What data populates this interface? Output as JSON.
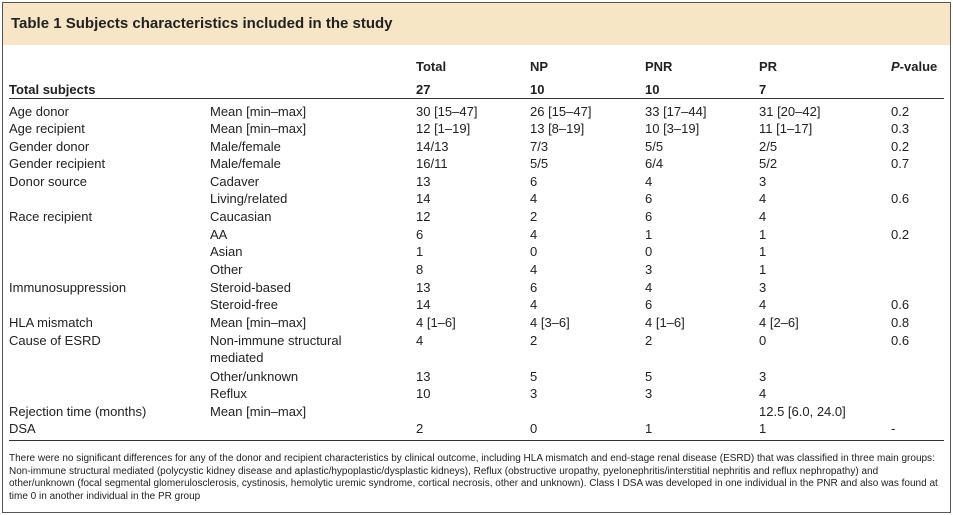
{
  "title": "Table 1 Subjects characteristics included in the study",
  "table": {
    "header": [
      "Total",
      "NP",
      "PNR",
      "PR",
      "P-value"
    ],
    "total_row": [
      "Total subjects",
      "27",
      "10",
      "10",
      "7"
    ],
    "rows": [
      [
        "Age donor",
        "Mean [min–max]",
        "30 [15–47]",
        "26 [15–47]",
        "33 [17–44]",
        "31 [20–42]",
        "0.2"
      ],
      [
        "Age recipient",
        "Mean [min–max]",
        "12 [1–19]",
        "13 [8–19]",
        "10 [3–19]",
        "11 [1–17]",
        "0.3"
      ],
      [
        "Gender donor",
        "Male/female",
        "14/13",
        "7/3",
        "5/5",
        "2/5",
        "0.2"
      ],
      [
        "Gender recipient",
        "Male/female",
        "16/11",
        "5/5",
        "6/4",
        "5/2",
        "0.7"
      ],
      [
        "Donor source",
        "Cadaver",
        "13",
        "6",
        "4",
        "3",
        null
      ],
      [
        null,
        "Living/related",
        "14",
        "4",
        "6",
        "4",
        "0.6"
      ],
      [
        "Race recipient",
        "Caucasian",
        "12",
        "2",
        "6",
        "4",
        null
      ],
      [
        null,
        "AA",
        "6",
        "4",
        "1",
        "1",
        "0.2"
      ],
      [
        null,
        "Asian",
        "1",
        "0",
        "0",
        "1",
        null
      ],
      [
        null,
        "Other",
        "8",
        "4",
        "3",
        "1",
        null
      ],
      [
        "Immunosuppression",
        "Steroid-based",
        "13",
        "6",
        "4",
        "3",
        null
      ],
      [
        null,
        "Steroid-free",
        "14",
        "4",
        "6",
        "4",
        "0.6"
      ],
      [
        "HLA mismatch",
        "Mean [min–max]",
        "4 [1–6]",
        "4 [3–6]",
        "4 [1–6]",
        "4 [2–6]",
        "0.8"
      ],
      [
        "Cause of ESRD",
        "Non-immune structural mediated",
        "4",
        "2",
        "2",
        "0",
        "0.6"
      ],
      [
        null,
        "Other/unknown",
        "13",
        "5",
        "5",
        "3",
        null
      ],
      [
        null,
        "Reflux",
        "10",
        "3",
        "3",
        "4",
        null
      ],
      [
        "Rejection time (months)",
        "Mean [min–max]",
        null,
        null,
        null,
        "12.5 [6.0, 24.0]",
        null
      ],
      [
        "DSA",
        null,
        "2",
        "0",
        "1",
        "1",
        "-"
      ]
    ]
  },
  "footnote": "There were no significant differences for any of the donor and recipient characteristics by clinical outcome, including HLA mismatch and end-stage renal disease (ESRD) that was classified in three main groups: Non-immune structural mediated (polycystic kidney disease and aplastic/hypoplastic/dysplastic kidneys), Reflux (obstructive uropathy, pyelonephritis/interstitial nephritis and reflux nephropathy) and other/unknown (focal segmental glomerulosclerosis, cystinosis, hemolytic uremic syndrome, cortical necrosis, other and unknown). Class I DSA was developed in one individual in the PNR and also was found at time 0 in another individual in the PR group"
}
